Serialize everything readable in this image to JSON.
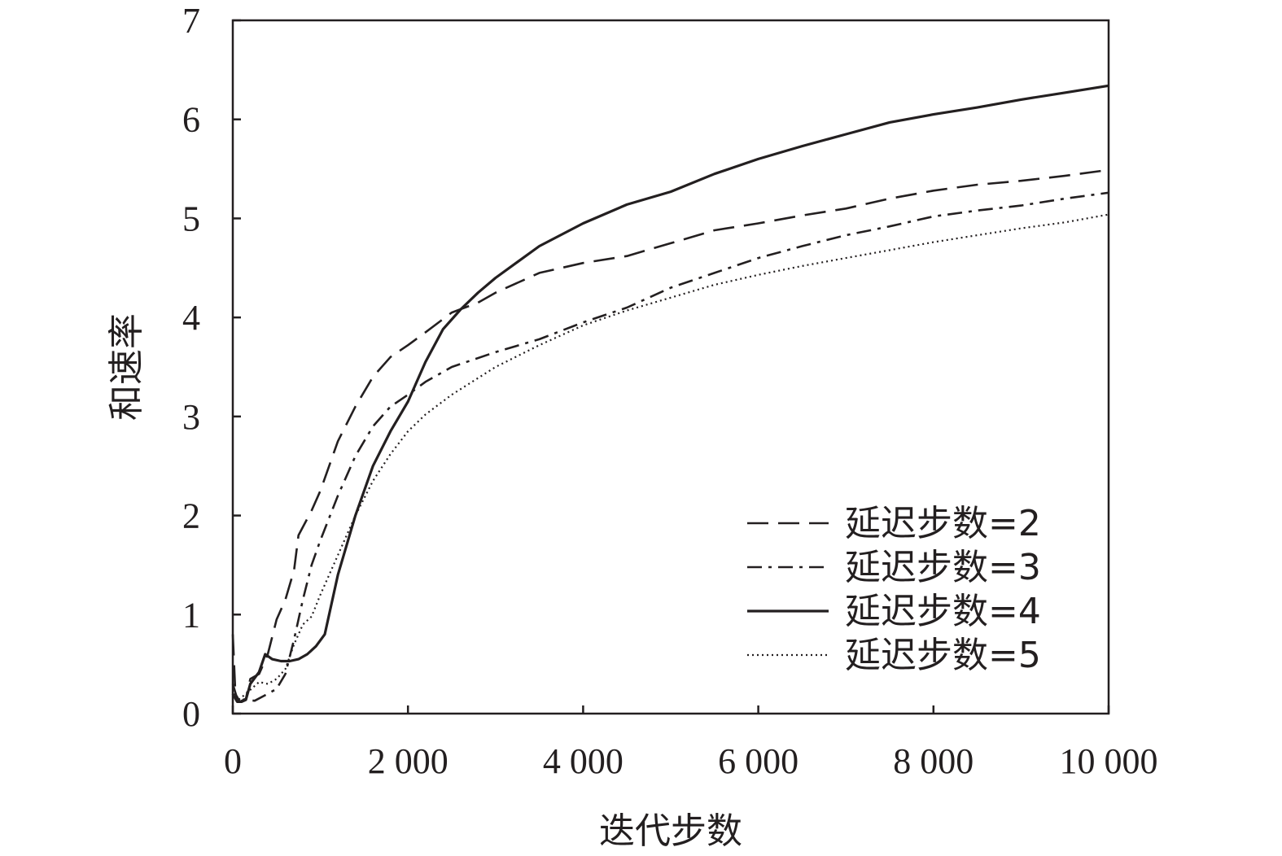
{
  "chart_data": {
    "type": "line",
    "xlabel": "迭代步数",
    "ylabel": "和速率",
    "xlim": [
      0,
      10000
    ],
    "ylim": [
      0,
      7
    ],
    "x_ticks": [
      0,
      2000,
      4000,
      6000,
      8000,
      10000
    ],
    "x_tick_labels": [
      "0",
      "2 000",
      "4 000",
      "6 000",
      "8 000",
      "10 000"
    ],
    "y_ticks": [
      0,
      1,
      2,
      3,
      4,
      5,
      6,
      7
    ],
    "y_tick_labels": [
      "0",
      "1",
      "2",
      "3",
      "4",
      "5",
      "6",
      "7"
    ],
    "grid": false,
    "legend_position": "bottom-right",
    "series": [
      {
        "name": "延迟步数=2",
        "dash": "dashed",
        "points": [
          [
            0,
            0.8
          ],
          [
            30,
            0.2
          ],
          [
            80,
            0.12
          ],
          [
            150,
            0.15
          ],
          [
            200,
            0.35
          ],
          [
            300,
            0.4
          ],
          [
            400,
            0.6
          ],
          [
            500,
            0.95
          ],
          [
            600,
            1.15
          ],
          [
            700,
            1.45
          ],
          [
            750,
            1.8
          ],
          [
            900,
            2.05
          ],
          [
            1000,
            2.25
          ],
          [
            1200,
            2.75
          ],
          [
            1400,
            3.1
          ],
          [
            1600,
            3.4
          ],
          [
            1800,
            3.6
          ],
          [
            2000,
            3.72
          ],
          [
            2200,
            3.85
          ],
          [
            2500,
            4.05
          ],
          [
            2800,
            4.15
          ],
          [
            3000,
            4.25
          ],
          [
            3500,
            4.45
          ],
          [
            4000,
            4.55
          ],
          [
            4500,
            4.62
          ],
          [
            5000,
            4.75
          ],
          [
            5500,
            4.88
          ],
          [
            6000,
            4.95
          ],
          [
            6500,
            5.03
          ],
          [
            7000,
            5.1
          ],
          [
            7500,
            5.2
          ],
          [
            8000,
            5.28
          ],
          [
            8500,
            5.34
          ],
          [
            9000,
            5.38
          ],
          [
            9500,
            5.43
          ],
          [
            10000,
            5.49
          ]
        ]
      },
      {
        "name": "延迟步数=3",
        "dash": "dashdot",
        "points": [
          [
            0,
            0.3
          ],
          [
            50,
            0.15
          ],
          [
            150,
            0.14
          ],
          [
            250,
            0.13
          ],
          [
            400,
            0.2
          ],
          [
            500,
            0.25
          ],
          [
            600,
            0.4
          ],
          [
            700,
            0.75
          ],
          [
            800,
            1.15
          ],
          [
            900,
            1.5
          ],
          [
            1000,
            1.75
          ],
          [
            1200,
            2.2
          ],
          [
            1400,
            2.6
          ],
          [
            1600,
            2.9
          ],
          [
            1800,
            3.1
          ],
          [
            2000,
            3.22
          ],
          [
            2200,
            3.35
          ],
          [
            2500,
            3.5
          ],
          [
            3000,
            3.65
          ],
          [
            3500,
            3.78
          ],
          [
            4000,
            3.95
          ],
          [
            4500,
            4.1
          ],
          [
            5000,
            4.3
          ],
          [
            5500,
            4.45
          ],
          [
            6000,
            4.6
          ],
          [
            6500,
            4.72
          ],
          [
            7000,
            4.83
          ],
          [
            7500,
            4.92
          ],
          [
            8000,
            5.02
          ],
          [
            8500,
            5.08
          ],
          [
            9000,
            5.13
          ],
          [
            9500,
            5.2
          ],
          [
            10000,
            5.26
          ]
        ]
      },
      {
        "name": "延迟步数=4",
        "dash": "solid",
        "points": [
          [
            0,
            0.2
          ],
          [
            50,
            0.12
          ],
          [
            100,
            0.12
          ],
          [
            150,
            0.14
          ],
          [
            200,
            0.3
          ],
          [
            300,
            0.42
          ],
          [
            370,
            0.6
          ],
          [
            450,
            0.55
          ],
          [
            550,
            0.53
          ],
          [
            650,
            0.53
          ],
          [
            750,
            0.55
          ],
          [
            850,
            0.6
          ],
          [
            950,
            0.68
          ],
          [
            1050,
            0.8
          ],
          [
            1200,
            1.4
          ],
          [
            1400,
            2.0
          ],
          [
            1600,
            2.5
          ],
          [
            1800,
            2.85
          ],
          [
            2000,
            3.15
          ],
          [
            2200,
            3.55
          ],
          [
            2400,
            3.88
          ],
          [
            2600,
            4.08
          ],
          [
            2800,
            4.25
          ],
          [
            3000,
            4.4
          ],
          [
            3500,
            4.72
          ],
          [
            4000,
            4.95
          ],
          [
            4500,
            5.14
          ],
          [
            5000,
            5.27
          ],
          [
            5500,
            5.45
          ],
          [
            6000,
            5.6
          ],
          [
            6500,
            5.73
          ],
          [
            7000,
            5.85
          ],
          [
            7500,
            5.97
          ],
          [
            8000,
            6.05
          ],
          [
            8500,
            6.12
          ],
          [
            9000,
            6.2
          ],
          [
            9500,
            6.27
          ],
          [
            10000,
            6.34
          ]
        ]
      },
      {
        "name": "延迟步数=5",
        "dash": "dotted",
        "points": [
          [
            0,
            0.25
          ],
          [
            50,
            0.13
          ],
          [
            150,
            0.2
          ],
          [
            300,
            0.32
          ],
          [
            400,
            0.3
          ],
          [
            500,
            0.35
          ],
          [
            600,
            0.45
          ],
          [
            700,
            0.7
          ],
          [
            800,
            0.9
          ],
          [
            900,
            0.98
          ],
          [
            1000,
            1.2
          ],
          [
            1200,
            1.6
          ],
          [
            1400,
            2.0
          ],
          [
            1600,
            2.35
          ],
          [
            1800,
            2.62
          ],
          [
            2000,
            2.85
          ],
          [
            2200,
            3.02
          ],
          [
            2500,
            3.22
          ],
          [
            3000,
            3.5
          ],
          [
            3500,
            3.72
          ],
          [
            4000,
            3.92
          ],
          [
            4500,
            4.07
          ],
          [
            5000,
            4.2
          ],
          [
            5500,
            4.33
          ],
          [
            6000,
            4.43
          ],
          [
            6500,
            4.52
          ],
          [
            7000,
            4.6
          ],
          [
            7500,
            4.68
          ],
          [
            8000,
            4.76
          ],
          [
            8500,
            4.83
          ],
          [
            9000,
            4.9
          ],
          [
            9500,
            4.96
          ],
          [
            10000,
            5.04
          ]
        ]
      }
    ]
  }
}
